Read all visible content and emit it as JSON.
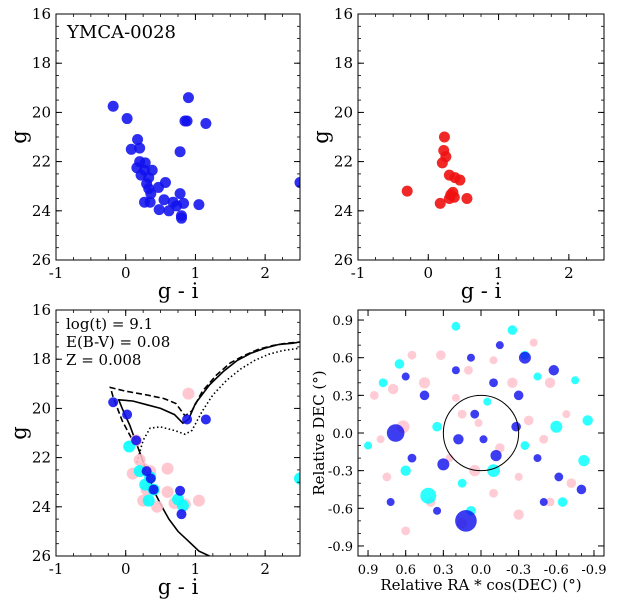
{
  "chart_data": [
    {
      "type": "scatter",
      "id": "cmd-cluster",
      "annotation": "YMCA-0028",
      "xlabel": "g - i",
      "ylabel": "g",
      "xlim": [
        -1,
        2.5
      ],
      "ylim": [
        26,
        16
      ],
      "xticks": [
        "-1",
        "0",
        "1",
        "2"
      ],
      "yticks": [
        "16",
        "18",
        "20",
        "22",
        "24",
        "26"
      ],
      "color": "#1111ee",
      "points": [
        [
          -0.18,
          19.75
        ],
        [
          0.02,
          20.25
        ],
        [
          0.9,
          19.4
        ],
        [
          1.15,
          20.45
        ],
        [
          0.85,
          20.35
        ],
        [
          0.88,
          20.35
        ],
        [
          0.08,
          21.5
        ],
        [
          0.17,
          21.1
        ],
        [
          0.2,
          21.45
        ],
        [
          0.78,
          21.6
        ],
        [
          0.2,
          22.0
        ],
        [
          0.28,
          22.05
        ],
        [
          0.16,
          22.25
        ],
        [
          0.27,
          22.35
        ],
        [
          0.38,
          22.35
        ],
        [
          0.22,
          22.55
        ],
        [
          0.33,
          22.65
        ],
        [
          0.3,
          22.9
        ],
        [
          0.57,
          22.85
        ],
        [
          0.33,
          23.1
        ],
        [
          0.47,
          23.05
        ],
        [
          0.36,
          23.3
        ],
        [
          0.78,
          23.3
        ],
        [
          0.27,
          23.65
        ],
        [
          0.35,
          23.65
        ],
        [
          0.55,
          23.55
        ],
        [
          0.68,
          23.65
        ],
        [
          0.73,
          23.8
        ],
        [
          0.83,
          23.7
        ],
        [
          1.05,
          23.75
        ],
        [
          0.48,
          23.95
        ],
        [
          0.62,
          24.0
        ],
        [
          0.8,
          24.2
        ],
        [
          0.8,
          24.3
        ],
        [
          2.5,
          22.85
        ]
      ]
    },
    {
      "type": "scatter",
      "id": "cmd-members",
      "xlabel": "g - i",
      "ylabel": "g",
      "xlim": [
        -1,
        2.5
      ],
      "ylim": [
        26,
        16
      ],
      "xticks": [
        "-1",
        "0",
        "1",
        "2"
      ],
      "yticks": [
        "16",
        "18",
        "20",
        "22",
        "24",
        "26"
      ],
      "color": "#ee1111",
      "points": [
        [
          0.23,
          21.0
        ],
        [
          0.22,
          21.55
        ],
        [
          0.25,
          21.8
        ],
        [
          0.2,
          22.05
        ],
        [
          0.3,
          22.55
        ],
        [
          0.38,
          22.65
        ],
        [
          0.45,
          22.75
        ],
        [
          -0.3,
          23.2
        ],
        [
          0.32,
          23.35
        ],
        [
          0.35,
          23.25
        ],
        [
          0.3,
          23.5
        ],
        [
          0.37,
          23.45
        ],
        [
          0.55,
          23.5
        ],
        [
          0.17,
          23.7
        ]
      ]
    },
    {
      "type": "scatter",
      "id": "cmd-isochrone",
      "xlabel": "g - i",
      "ylabel": "g",
      "xlim": [
        -1,
        2.5
      ],
      "ylim": [
        26,
        16
      ],
      "xticks": [
        "-1",
        "0",
        "1",
        "2"
      ],
      "yticks": [
        "16",
        "18",
        "20",
        "22",
        "24",
        "26"
      ],
      "annotations": [
        "log(t) = 9.1",
        "E(B-V) = 0.08",
        "Z = 0.008"
      ],
      "series": [
        {
          "name": "field",
          "color": "#ffc0cb",
          "points": [
            [
              0.9,
              19.4
            ],
            [
              0.15,
              21.3
            ],
            [
              0.2,
              22.1
            ],
            [
              0.25,
              22.45
            ],
            [
              0.1,
              22.65
            ],
            [
              0.35,
              22.55
            ],
            [
              0.6,
              22.45
            ],
            [
              0.3,
              23.3
            ],
            [
              0.6,
              23.4
            ],
            [
              0.25,
              23.75
            ],
            [
              0.45,
              24.0
            ],
            [
              0.7,
              23.85
            ],
            [
              0.85,
              23.9
            ],
            [
              1.05,
              23.75
            ]
          ]
        },
        {
          "name": "members-cyan",
          "color": "#00ffff",
          "points": [
            [
              0.35,
              22.8
            ],
            [
              0.28,
              23.1
            ],
            [
              0.05,
              21.55
            ],
            [
              0.2,
              22.55
            ],
            [
              0.4,
              23.3
            ],
            [
              0.33,
              23.75
            ],
            [
              0.75,
              23.7
            ],
            [
              0.82,
              23.95
            ],
            [
              2.5,
              22.85
            ]
          ]
        },
        {
          "name": "members-blue",
          "color": "#1111ee",
          "points": [
            [
              -0.18,
              19.75
            ],
            [
              0.02,
              20.25
            ],
            [
              0.88,
              20.45
            ],
            [
              1.15,
              20.45
            ],
            [
              0.15,
              21.3
            ],
            [
              0.3,
              22.55
            ],
            [
              0.36,
              22.85
            ],
            [
              0.4,
              23.3
            ],
            [
              0.78,
              23.35
            ],
            [
              0.8,
              24.3
            ]
          ]
        }
      ],
      "isochrones": [
        {
          "name": "best-fit",
          "style": "solid",
          "points": [
            [
              1.2,
              26.0
            ],
            [
              1.05,
              25.8
            ],
            [
              0.9,
              25.4
            ],
            [
              0.75,
              25.0
            ],
            [
              0.62,
              24.5
            ],
            [
              0.52,
              24.0
            ],
            [
              0.43,
              23.5
            ],
            [
              0.36,
              23.0
            ],
            [
              0.3,
              22.6
            ],
            [
              0.23,
              22.0
            ],
            [
              0.15,
              21.4
            ],
            [
              0.06,
              20.7
            ],
            [
              -0.05,
              20.0
            ],
            [
              -0.1,
              19.65
            ],
            [
              0.1,
              19.7
            ],
            [
              0.3,
              19.85
            ],
            [
              0.5,
              20.0
            ],
            [
              0.7,
              20.25
            ],
            [
              0.82,
              20.6
            ],
            [
              0.9,
              20.45
            ],
            [
              1.0,
              19.8
            ],
            [
              1.2,
              19.05
            ],
            [
              1.4,
              18.5
            ],
            [
              1.6,
              18.05
            ],
            [
              1.8,
              17.75
            ],
            [
              2.0,
              17.55
            ],
            [
              2.2,
              17.4
            ],
            [
              2.4,
              17.35
            ],
            [
              2.5,
              17.3
            ]
          ]
        },
        {
          "name": "lower-age",
          "style": "dashed",
          "points": [
            [
              0.08,
              21.2
            ],
            [
              -0.05,
              20.5
            ],
            [
              -0.18,
              19.55
            ],
            [
              -0.22,
              19.15
            ],
            [
              0.0,
              19.3
            ],
            [
              0.3,
              19.45
            ],
            [
              0.55,
              19.6
            ],
            [
              0.72,
              19.8
            ],
            [
              0.85,
              20.3
            ],
            [
              0.95,
              20.1
            ],
            [
              1.1,
              19.3
            ],
            [
              1.3,
              18.65
            ],
            [
              1.5,
              18.15
            ],
            [
              1.7,
              17.85
            ],
            [
              1.9,
              17.6
            ],
            [
              2.1,
              17.45
            ],
            [
              2.3,
              17.35
            ],
            [
              2.5,
              17.3
            ]
          ]
        },
        {
          "name": "higher-age",
          "style": "dotted",
          "points": [
            [
              0.16,
              22.2
            ],
            [
              0.25,
              21.3
            ],
            [
              0.35,
              20.8
            ],
            [
              0.5,
              20.75
            ],
            [
              0.7,
              20.9
            ],
            [
              0.85,
              21.05
            ],
            [
              0.95,
              20.9
            ],
            [
              1.1,
              20.1
            ],
            [
              1.25,
              19.45
            ],
            [
              1.45,
              18.85
            ],
            [
              1.65,
              18.4
            ],
            [
              1.85,
              18.05
            ],
            [
              2.05,
              17.8
            ],
            [
              2.25,
              17.65
            ],
            [
              2.5,
              17.55
            ]
          ]
        }
      ]
    },
    {
      "type": "scatter",
      "id": "sky-map",
      "xlabel": "Relative RA * cos(DEC) (°)",
      "ylabel": "Relative DEC (°)",
      "xlim": [
        0.98,
        -0.98
      ],
      "ylim": [
        -0.98,
        0.98
      ],
      "xticks": [
        "0.9",
        "0.6",
        "0.3",
        "0.0",
        "-0.3",
        "-0.6",
        "-0.9"
      ],
      "yticks": [
        "0.9",
        "0.6",
        "0.3",
        "0.0",
        "-0.3",
        "-0.6",
        "-0.9"
      ],
      "circle_radius": 0.3,
      "series": [
        {
          "name": "pink",
          "color": "#ffc0cb",
          "points": [
            [
              0.62,
              0.05,
              1.6
            ],
            [
              0.75,
              -0.35,
              1.1
            ],
            [
              0.55,
              0.62,
              1.1
            ],
            [
              0.45,
              0.4,
              1.4
            ],
            [
              0.32,
              0.62,
              1.2
            ],
            [
              0.2,
              0.28,
              1.0
            ],
            [
              0.1,
              0.5,
              1.1
            ],
            [
              -0.1,
              0.58,
              1.0
            ],
            [
              -0.25,
              0.4,
              1.3
            ],
            [
              -0.38,
              0.1,
              1.2
            ],
            [
              -0.5,
              -0.05,
              1.1
            ],
            [
              -0.55,
              0.4,
              1.3
            ],
            [
              -0.68,
              0.15,
              1.0
            ],
            [
              -0.72,
              -0.4,
              1.2
            ],
            [
              -0.55,
              -0.55,
              1.1
            ],
            [
              -0.3,
              -0.65,
              1.3
            ],
            [
              -0.1,
              -0.48,
              1.1
            ],
            [
              0.05,
              -0.3,
              1.4
            ],
            [
              0.25,
              -0.2,
              1.0
            ],
            [
              0.4,
              -0.55,
              1.2
            ],
            [
              0.6,
              -0.78,
              1.1
            ],
            [
              0.8,
              -0.05,
              1.0
            ],
            [
              0.85,
              0.3,
              1.1
            ],
            [
              0.7,
              0.35,
              1.3
            ],
            [
              0.02,
              0.08,
              1.0
            ],
            [
              -0.15,
              -0.12,
              1.2
            ],
            [
              0.15,
              0.15,
              1.1
            ],
            [
              -0.42,
              0.72,
              1.0
            ],
            [
              0.15,
              -0.72,
              1.3
            ],
            [
              -0.3,
              -0.35,
              1.0
            ]
          ]
        },
        {
          "name": "cyan",
          "color": "#00ffff",
          "points": [
            [
              0.42,
              -0.5,
              2.0
            ],
            [
              0.2,
              0.85,
              1.1
            ],
            [
              -0.25,
              0.82,
              1.2
            ],
            [
              -0.6,
              0.05,
              1.5
            ],
            [
              -0.85,
              0.1,
              1.3
            ],
            [
              -0.82,
              -0.22,
              1.4
            ],
            [
              -0.65,
              -0.55,
              1.2
            ],
            [
              -0.35,
              -0.1,
              1.1
            ],
            [
              -0.1,
              -0.3,
              1.6
            ],
            [
              0.15,
              -0.4,
              1.1
            ],
            [
              0.35,
              0.05,
              1.2
            ],
            [
              0.65,
              0.55,
              1.2
            ],
            [
              0.78,
              0.4,
              1.1
            ],
            [
              0.9,
              -0.1,
              1.0
            ],
            [
              0.6,
              -0.3,
              1.3
            ],
            [
              -0.45,
              0.45,
              1.0
            ],
            [
              -0.05,
              0.25,
              1.0
            ],
            [
              0.08,
              -0.62,
              1.2
            ],
            [
              -0.35,
              0.62,
              1.1
            ],
            [
              -0.75,
              0.42,
              1.0
            ]
          ]
        },
        {
          "name": "blue",
          "color": "#1111ee",
          "points": [
            [
              0.12,
              -0.7,
              2.7
            ],
            [
              0.68,
              0.0,
              2.2
            ],
            [
              0.3,
              -0.25,
              1.5
            ],
            [
              -0.12,
              -0.18,
              1.4
            ],
            [
              -0.35,
              0.6,
              1.5
            ],
            [
              -0.58,
              0.5,
              1.3
            ],
            [
              -0.8,
              -0.45,
              1.2
            ],
            [
              -0.62,
              -0.35,
              1.1
            ],
            [
              -0.45,
              -0.2,
              1.0
            ],
            [
              -0.3,
              0.3,
              1.2
            ],
            [
              0.05,
              0.15,
              1.1
            ],
            [
              0.18,
              -0.05,
              1.3
            ],
            [
              -0.02,
              -0.05,
              1.0
            ],
            [
              0.45,
              0.3,
              1.2
            ],
            [
              0.6,
              0.45,
              1.0
            ],
            [
              0.55,
              -0.2,
              1.1
            ],
            [
              0.2,
              0.5,
              1.0
            ],
            [
              -0.1,
              0.4,
              1.1
            ],
            [
              -0.28,
              0.05,
              1.2
            ],
            [
              0.35,
              -0.62,
              1.0
            ],
            [
              -0.5,
              -0.55,
              1.0
            ],
            [
              0.72,
              -0.55,
              1.0
            ],
            [
              -0.15,
              0.7,
              1.0
            ],
            [
              0.08,
              0.6,
              1.0
            ]
          ]
        }
      ]
    }
  ]
}
